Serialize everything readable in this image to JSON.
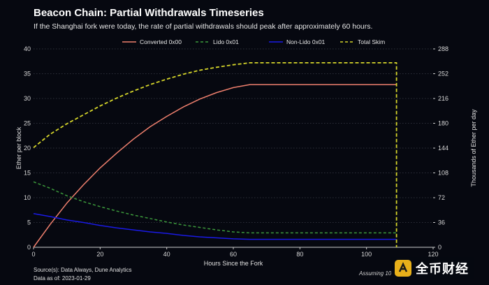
{
  "header": {
    "title": "Beacon Chain: Partial Withdrawals Timeseries",
    "subtitle": "If the Shanghai fork were today, the rate of partial withdrawals should peak after approximately 60 hours."
  },
  "footer": {
    "source": "Source(s): Data Always, Dune Analytics",
    "as_of": "Data as of: 2023-01-29",
    "note": "Assuming 10"
  },
  "watermark": {
    "text": "全币财经"
  },
  "colors": {
    "background": "#060810",
    "converted": "#f0806e",
    "lido": "#3c9a3c",
    "nonlido": "#1a1ae6",
    "skim": "#d6d62a",
    "grid": "#3a3d48"
  },
  "chart_data": {
    "type": "line",
    "title": "Beacon Chain: Partial Withdrawals Timeseries",
    "xlabel": "Hours Since the Fork",
    "ylabel": "Ether per block",
    "y2label": "Thousands of Ether per day",
    "xlim": [
      0,
      120
    ],
    "ylim": [
      0,
      40
    ],
    "y2lim": [
      0,
      288
    ],
    "xticks": [
      0,
      20,
      40,
      60,
      80,
      100,
      120
    ],
    "yticks": [
      0,
      5,
      10,
      15,
      20,
      25,
      30,
      35,
      40
    ],
    "y2ticks": [
      0,
      36,
      72,
      108,
      144,
      180,
      216,
      252,
      288
    ],
    "grid": "horizontal dotted",
    "legend": "top-center",
    "series": [
      {
        "name": "Converted 0x00",
        "style": "solid",
        "x": [
          0,
          5,
          10,
          15,
          20,
          25,
          30,
          35,
          40,
          45,
          50,
          55,
          60,
          65,
          70,
          80,
          90,
          100,
          109
        ],
        "y": [
          0,
          4.6,
          8.9,
          12.6,
          16.0,
          19.0,
          21.8,
          24.3,
          26.4,
          28.3,
          29.9,
          31.2,
          32.2,
          32.8,
          32.8,
          32.8,
          32.8,
          32.8,
          32.8
        ]
      },
      {
        "name": "Lido 0x01",
        "style": "dashed",
        "x": [
          0,
          5,
          10,
          15,
          20,
          25,
          30,
          35,
          40,
          45,
          50,
          55,
          60,
          65,
          70,
          80,
          90,
          100,
          109
        ],
        "y": [
          13.2,
          11.9,
          10.4,
          9.2,
          8.2,
          7.3,
          6.5,
          5.8,
          5.1,
          4.5,
          4.0,
          3.5,
          3.1,
          2.9,
          2.9,
          2.9,
          2.9,
          2.9,
          2.9
        ]
      },
      {
        "name": "Non-Lido 0x01",
        "style": "solid",
        "x": [
          0,
          5,
          10,
          15,
          20,
          25,
          30,
          35,
          40,
          45,
          50,
          55,
          60,
          65,
          70,
          80,
          90,
          100,
          109
        ],
        "y": [
          6.8,
          6.2,
          5.5,
          5.0,
          4.4,
          3.9,
          3.5,
          3.1,
          2.8,
          2.4,
          2.1,
          1.9,
          1.7,
          1.6,
          1.6,
          1.6,
          1.6,
          1.6,
          1.6
        ]
      },
      {
        "name": "Total Skim",
        "style": "dashed",
        "x": [
          0,
          5,
          10,
          15,
          20,
          25,
          30,
          35,
          40,
          45,
          50,
          55,
          60,
          65,
          70,
          80,
          90,
          100,
          109,
          109
        ],
        "y": [
          20.1,
          22.8,
          24.9,
          26.7,
          28.5,
          30.1,
          31.5,
          32.8,
          33.9,
          34.9,
          35.7,
          36.3,
          36.8,
          37.2,
          37.2,
          37.2,
          37.2,
          37.2,
          37.2,
          0
        ]
      }
    ]
  }
}
